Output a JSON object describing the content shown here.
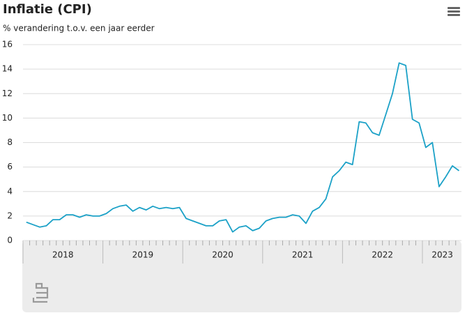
{
  "chart_data": {
    "type": "line",
    "title": "Inflatie (CPI)",
    "subtitle": "% verandering t.o.v. een jaar eerder",
    "categories": [
      "2018",
      null,
      null,
      null,
      null,
      null,
      null,
      null,
      null,
      null,
      null,
      null,
      "2019",
      null,
      null,
      null,
      null,
      null,
      null,
      null,
      null,
      null,
      null,
      null,
      "2020",
      null,
      null,
      null,
      null,
      null,
      null,
      null,
      null,
      null,
      null,
      null,
      "2021",
      null,
      null,
      null,
      null,
      null,
      null,
      null,
      null,
      null,
      null,
      null,
      "2022",
      null,
      null,
      null,
      null,
      null,
      null,
      null,
      null,
      null,
      null,
      null,
      "2023",
      null,
      null,
      null,
      null,
      null
    ],
    "values": [
      1.5,
      1.3,
      1.1,
      1.2,
      1.7,
      1.7,
      2.1,
      2.1,
      1.9,
      2.1,
      2.0,
      2.0,
      2.2,
      2.6,
      2.8,
      2.9,
      2.4,
      2.7,
      2.5,
      2.8,
      2.6,
      2.7,
      2.6,
      2.7,
      1.8,
      1.6,
      1.4,
      1.2,
      1.2,
      1.6,
      1.7,
      0.7,
      1.1,
      1.2,
      0.8,
      1.0,
      1.6,
      1.8,
      1.9,
      1.9,
      2.1,
      2.0,
      1.4,
      2.4,
      2.7,
      3.4,
      5.2,
      5.7,
      6.4,
      6.2,
      9.7,
      9.6,
      8.8,
      8.6,
      10.3,
      12.0,
      14.5,
      14.3,
      9.9,
      9.6,
      7.6,
      8.0,
      4.4,
      5.2,
      6.1,
      5.7
    ],
    "color": "#1ba1c7",
    "ylim": [
      0,
      16
    ],
    "yticks": [
      0,
      2,
      4,
      6,
      8,
      10,
      12,
      14,
      16
    ],
    "grid": true
  }
}
